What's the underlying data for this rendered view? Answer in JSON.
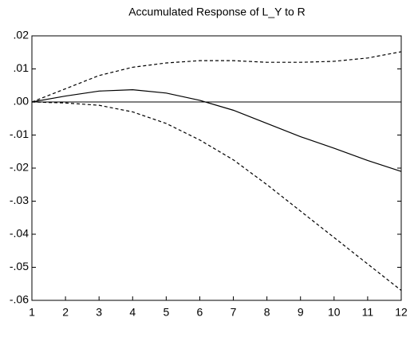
{
  "chart_data": {
    "type": "line",
    "title": "Accumulated Response of L_Y to R",
    "x": [
      1,
      2,
      3,
      4,
      5,
      6,
      7,
      8,
      9,
      10,
      11,
      12
    ],
    "series": [
      {
        "color": "#000000",
        "dashed": false,
        "values": [
          0,
          0.0018,
          0.0033,
          0.0037,
          0.0027,
          0.0005,
          -0.0025,
          -0.0065,
          -0.0105,
          -0.014,
          -0.0177,
          -0.021
        ]
      },
      {
        "color": "#000000",
        "dashed": true,
        "values": [
          0,
          0.004,
          0.008,
          0.0105,
          0.0118,
          0.0125,
          0.0125,
          0.012,
          0.012,
          0.0123,
          0.0133,
          0.0152
        ]
      },
      {
        "color": "#000000",
        "dashed": true,
        "values": [
          0,
          -0.0003,
          -0.001,
          -0.003,
          -0.0065,
          -0.0115,
          -0.0175,
          -0.025,
          -0.033,
          -0.041,
          -0.049,
          -0.057
        ]
      }
    ],
    "reference_line": 0,
    "xlim": [
      1,
      12
    ],
    "xticks": [
      1,
      2,
      3,
      4,
      5,
      6,
      7,
      8,
      9,
      10,
      11,
      12
    ],
    "ylim": [
      -0.06,
      0.02
    ],
    "yticks": [
      {
        "value": -0.06,
        "label": "-.06"
      },
      {
        "value": -0.05,
        "label": "-.05"
      },
      {
        "value": -0.04,
        "label": "-.04"
      },
      {
        "value": -0.03,
        "label": "-.03"
      },
      {
        "value": -0.02,
        "label": "-.02"
      },
      {
        "value": -0.01,
        "label": "-.01"
      },
      {
        "value": 0,
        "label": ".00"
      },
      {
        "value": 0.01,
        "label": ".01"
      },
      {
        "value": 0.02,
        "label": ".02"
      }
    ],
    "grid": false
  }
}
